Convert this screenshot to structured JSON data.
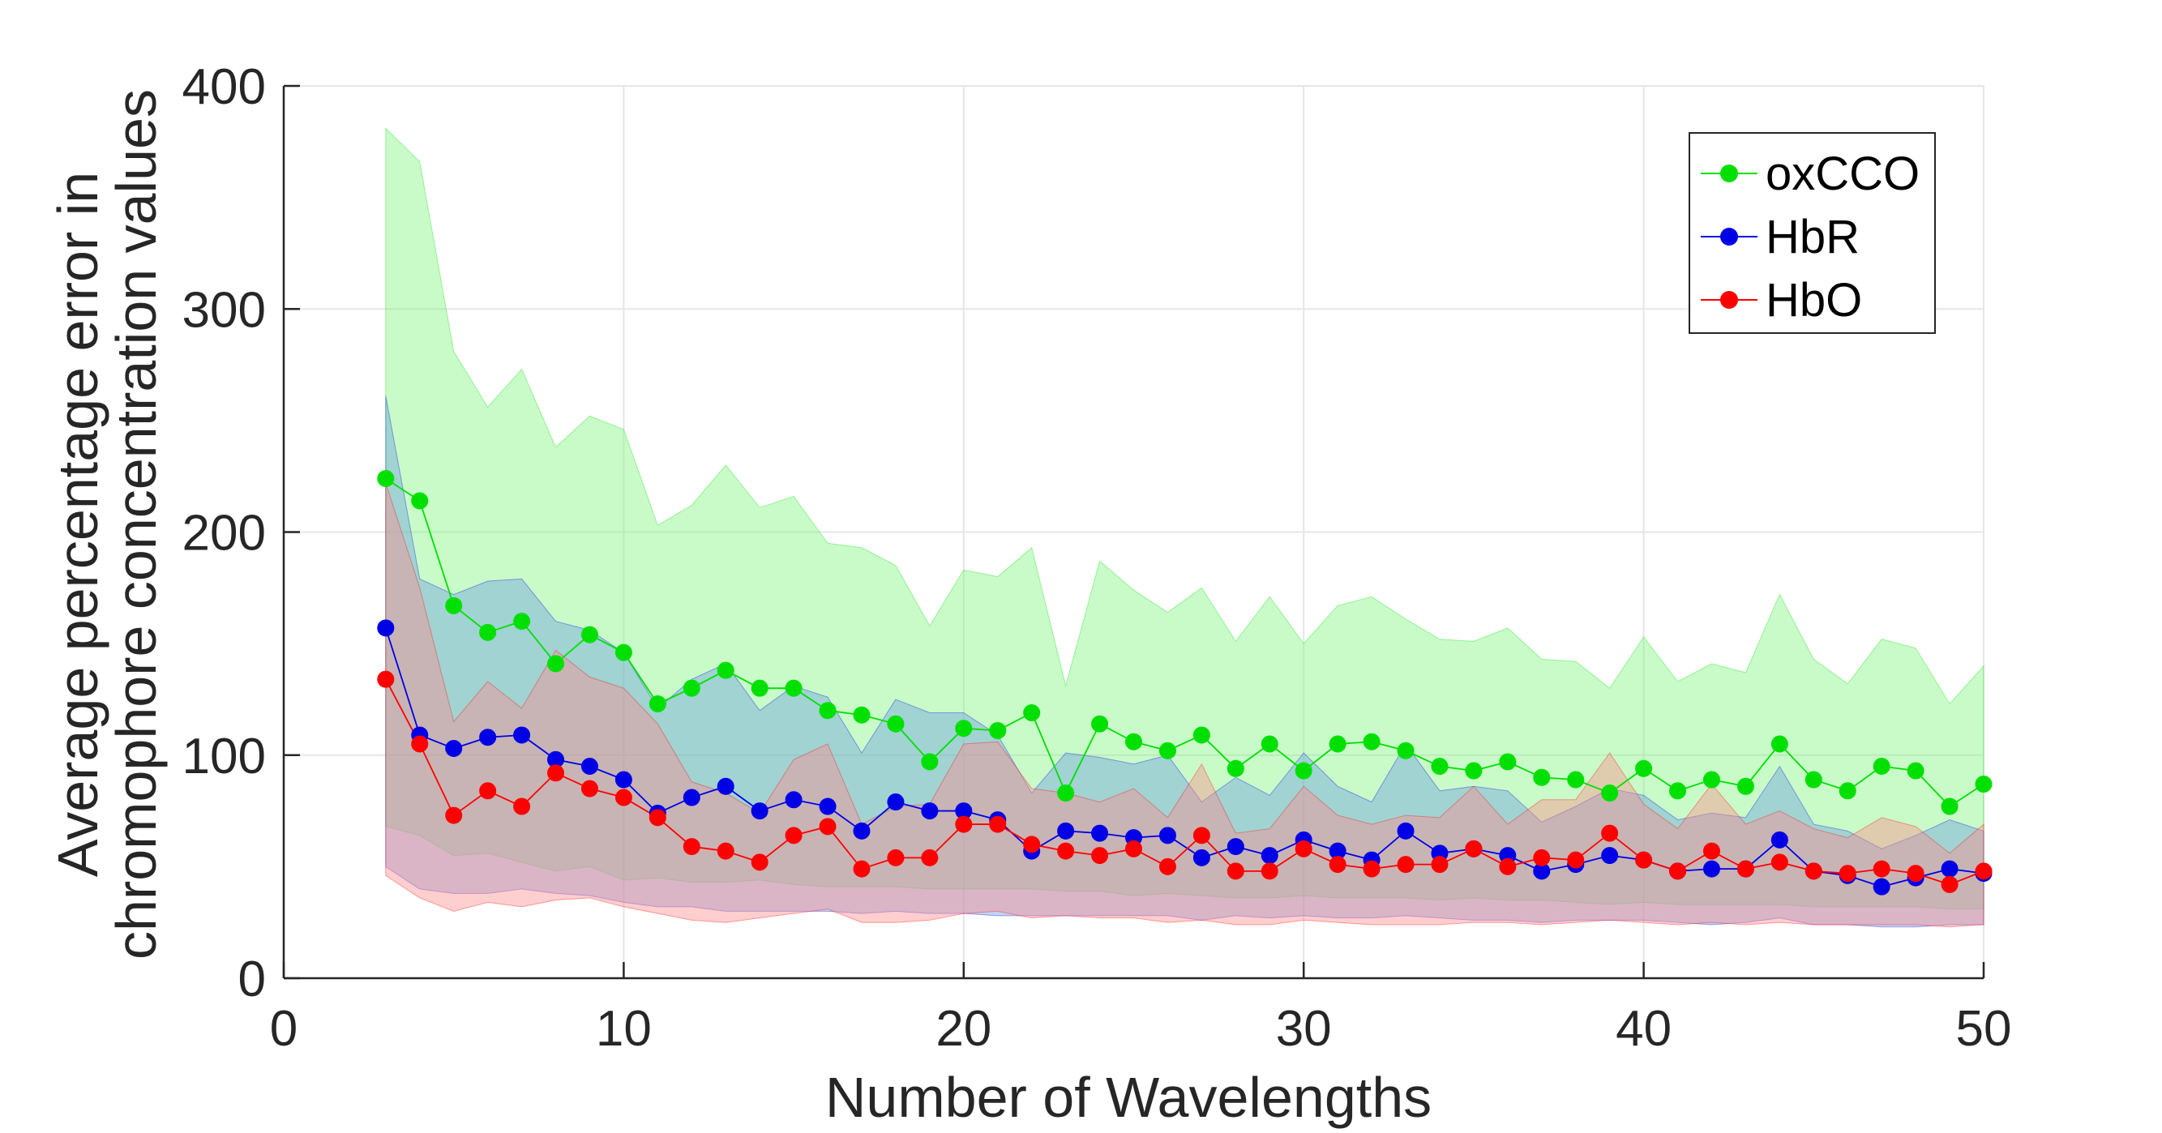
{
  "chart_data": {
    "type": "line",
    "title": "",
    "xlabel": "Number of Wavelengths",
    "ylabel_lines": [
      "Average percentage error in",
      "chromophore concentration values"
    ],
    "xlim": [
      0,
      50
    ],
    "ylim": [
      0,
      400
    ],
    "xticks": [
      0,
      10,
      20,
      30,
      40,
      50
    ],
    "yticks": [
      0,
      100,
      200,
      300,
      400
    ],
    "grid": true,
    "legend_position": "top-right",
    "x": [
      3,
      4,
      5,
      6,
      7,
      8,
      9,
      10,
      11,
      12,
      13,
      14,
      15,
      16,
      17,
      18,
      19,
      20,
      21,
      22,
      23,
      24,
      25,
      26,
      27,
      28,
      29,
      30,
      31,
      32,
      33,
      34,
      35,
      36,
      37,
      38,
      39,
      40,
      41,
      42,
      43,
      44,
      45,
      46,
      47,
      48,
      49,
      50
    ],
    "series": [
      {
        "name": "oxCCO",
        "color": "#00e000",
        "band_color": "#7ff57f",
        "values": [
          224,
          214,
          167,
          155,
          160,
          141,
          154,
          146,
          123,
          130,
          138,
          130,
          130,
          120,
          118,
          114,
          97,
          112,
          111,
          119,
          83,
          114,
          106,
          102,
          109,
          94,
          105,
          93,
          105,
          106,
          102,
          95,
          93,
          97,
          90,
          89,
          83,
          94,
          84,
          89,
          86,
          105,
          89,
          84,
          95,
          93,
          77,
          87
        ],
        "upper": [
          381,
          366,
          281,
          256,
          273,
          238,
          252,
          246,
          203,
          212,
          230,
          211,
          216,
          195,
          193,
          185,
          158,
          183,
          180,
          193,
          131,
          187,
          174,
          164,
          175,
          151,
          171,
          150,
          167,
          171,
          161,
          152,
          151,
          157,
          143,
          142,
          130,
          153,
          133,
          141,
          137,
          172,
          143,
          132,
          152,
          148,
          123,
          140
        ],
        "lower": [
          68,
          64,
          55,
          56,
          52,
          48,
          50,
          44,
          45,
          43,
          43,
          44,
          42,
          41,
          41,
          41,
          40,
          40,
          40,
          40,
          39,
          39,
          37,
          38,
          37,
          36,
          36,
          37,
          36,
          36,
          36,
          35,
          36,
          35,
          35,
          34,
          33,
          34,
          33,
          33,
          33,
          33,
          32,
          32,
          32,
          32,
          31,
          31
        ]
      },
      {
        "name": "HbR",
        "color": "#0000e6",
        "band_color": "#6a9adf",
        "values": [
          157,
          109,
          103,
          108,
          109,
          98,
          95,
          89,
          74,
          81,
          86,
          75,
          80,
          77,
          66,
          79,
          75,
          75,
          71,
          57,
          66,
          65,
          63,
          64,
          54,
          59,
          55,
          62,
          57,
          53,
          66,
          56,
          58,
          55,
          48,
          51,
          55,
          53,
          48,
          49,
          49,
          62,
          48,
          46,
          41,
          45,
          49,
          47
        ],
        "upper": [
          261,
          179,
          172,
          178,
          179,
          160,
          156,
          146,
          121,
          134,
          141,
          120,
          131,
          126,
          101,
          125,
          119,
          119,
          109,
          83,
          101,
          99,
          96,
          100,
          79,
          90,
          82,
          101,
          86,
          79,
          105,
          84,
          86,
          84,
          70,
          77,
          85,
          82,
          71,
          74,
          72,
          95,
          69,
          66,
          58,
          64,
          71,
          66
        ],
        "lower": [
          50,
          40,
          38,
          38,
          40,
          38,
          37,
          34,
          32,
          32,
          30,
          30,
          30,
          30,
          29,
          30,
          29,
          29,
          28,
          28,
          28,
          28,
          28,
          28,
          26,
          28,
          27,
          28,
          27,
          27,
          28,
          27,
          26,
          26,
          25,
          26,
          26,
          26,
          25,
          24,
          25,
          27,
          24,
          24,
          23,
          23,
          24,
          24
        ]
      },
      {
        "name": "HbO",
        "color": "#ff0000",
        "band_color": "#ff8a8a",
        "values": [
          134,
          105,
          73,
          84,
          77,
          92,
          85,
          81,
          72,
          59,
          57,
          52,
          64,
          68,
          49,
          54,
          54,
          69,
          69,
          60,
          57,
          55,
          58,
          50,
          64,
          48,
          48,
          58,
          51,
          49,
          51,
          51,
          58,
          50,
          54,
          53,
          65,
          53,
          48,
          57,
          49,
          52,
          48,
          47,
          49,
          47,
          42,
          48
        ],
        "upper": [
          222,
          175,
          115,
          133,
          121,
          147,
          135,
          130,
          114,
          88,
          83,
          74,
          98,
          105,
          69,
          77,
          78,
          105,
          106,
          85,
          83,
          79,
          85,
          72,
          96,
          65,
          67,
          86,
          73,
          69,
          73,
          72,
          86,
          69,
          80,
          80,
          101,
          78,
          67,
          87,
          69,
          75,
          67,
          63,
          72,
          68,
          56,
          69
        ],
        "lower": [
          46,
          36,
          30,
          34,
          32,
          35,
          36,
          32,
          29,
          26,
          25,
          27,
          29,
          31,
          25,
          25,
          26,
          29,
          30,
          27,
          28,
          27,
          27,
          25,
          26,
          24,
          24,
          26,
          25,
          24,
          24,
          24,
          25,
          25,
          24,
          25,
          26,
          25,
          24,
          25,
          24,
          25,
          24,
          24,
          24,
          24,
          23,
          24
        ]
      }
    ]
  }
}
